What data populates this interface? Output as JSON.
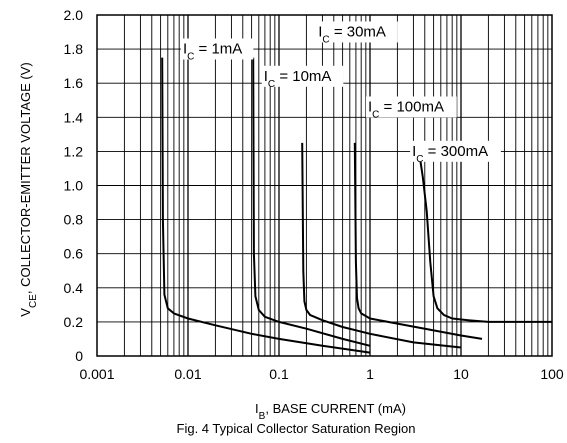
{
  "chart_data": {
    "type": "line",
    "title": "",
    "caption": "Fig. 4 Typical Collector Saturation Region",
    "xlabel": {
      "main": "I",
      "sub": "B",
      "rest": ", BASE CURRENT (mA)"
    },
    "ylabel": {
      "main": "V",
      "sub": "CE",
      "rest": ", COLLECTOR-EMITTER VOLTAGE (V)"
    },
    "x_scale": "log",
    "xlim": [
      0.001,
      100
    ],
    "ylim": [
      0,
      2.0
    ],
    "grid": true,
    "x_ticks": [
      {
        "value": 0.001,
        "label": "0.001"
      },
      {
        "value": 0.01,
        "label": "0.01"
      },
      {
        "value": 0.1,
        "label": "0.1"
      },
      {
        "value": 1,
        "label": "1"
      },
      {
        "value": 10,
        "label": "10"
      },
      {
        "value": 100,
        "label": "100"
      }
    ],
    "y_ticks": [
      {
        "value": 0,
        "label": "0"
      },
      {
        "value": 0.2,
        "label": "0.2"
      },
      {
        "value": 0.4,
        "label": "0.4"
      },
      {
        "value": 0.6,
        "label": "0.6"
      },
      {
        "value": 0.8,
        "label": "0.8"
      },
      {
        "value": 1.0,
        "label": "1.0"
      },
      {
        "value": 1.2,
        "label": "1.2"
      },
      {
        "value": 1.4,
        "label": "1.4"
      },
      {
        "value": 1.6,
        "label": "1.6"
      },
      {
        "value": 1.8,
        "label": "1.8"
      },
      {
        "value": 2.0,
        "label": "2.0"
      }
    ],
    "series": [
      {
        "name": "I_C = 1mA",
        "label": {
          "main": "I",
          "sub": "C",
          "rest": " = 1mA"
        },
        "label_at": [
          0.0088,
          1.78
        ],
        "x": [
          0.0052,
          0.0053,
          0.0055,
          0.006,
          0.007,
          0.01,
          0.02,
          0.05,
          0.1,
          0.3,
          1.0
        ],
        "y": [
          1.75,
          0.8,
          0.36,
          0.28,
          0.25,
          0.22,
          0.18,
          0.13,
          0.1,
          0.06,
          0.02
        ]
      },
      {
        "name": "I_C = 10mA",
        "label": {
          "main": "I",
          "sub": "C",
          "rest": " = 10mA"
        },
        "label_at": [
          0.068,
          1.62
        ],
        "x": [
          0.052,
          0.053,
          0.055,
          0.06,
          0.07,
          0.1,
          0.2,
          0.5,
          1.0
        ],
        "y": [
          1.75,
          0.6,
          0.35,
          0.27,
          0.23,
          0.2,
          0.16,
          0.1,
          0.06
        ]
      },
      {
        "name": "I_C = 30mA",
        "label": {
          "main": "I",
          "sub": "C",
          "rest": " = 30mA"
        },
        "label_at": [
          0.27,
          1.88
        ],
        "x": [
          0.18,
          0.185,
          0.19,
          0.2,
          0.22,
          0.3,
          0.5,
          1.0,
          3.0,
          10.0
        ],
        "y": [
          1.25,
          0.5,
          0.32,
          0.27,
          0.24,
          0.21,
          0.17,
          0.13,
          0.08,
          0.05
        ]
      },
      {
        "name": "I_C = 100mA",
        "label": {
          "main": "I",
          "sub": "C",
          "rest": " = 100mA"
        },
        "label_at": [
          0.95,
          1.44
        ],
        "x": [
          0.68,
          0.7,
          0.72,
          0.75,
          0.8,
          1.0,
          2.0,
          5.0,
          10.0,
          17.0
        ],
        "y": [
          1.25,
          0.55,
          0.34,
          0.28,
          0.25,
          0.22,
          0.19,
          0.15,
          0.12,
          0.1
        ]
      },
      {
        "name": "I_C = 300mA",
        "label": {
          "main": "I",
          "sub": "C",
          "rest": " = 300mA"
        },
        "label_at": [
          2.9,
          1.18
        ],
        "x": [
          3.5,
          3.8,
          4.2,
          4.6,
          5.0,
          5.5,
          6.5,
          8.0,
          12.0,
          20.0,
          50.0,
          100.0
        ],
        "y": [
          1.18,
          1.05,
          0.85,
          0.55,
          0.35,
          0.28,
          0.24,
          0.22,
          0.21,
          0.2,
          0.2,
          0.2
        ]
      }
    ]
  }
}
